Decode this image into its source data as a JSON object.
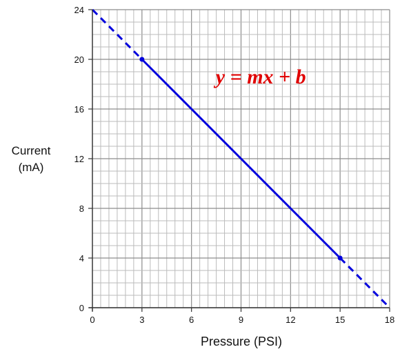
{
  "chart_data": {
    "type": "line",
    "x": [
      0,
      3,
      15,
      18
    ],
    "series": [
      {
        "values": [
          24,
          20,
          4,
          0
        ],
        "color": "#0000dd",
        "solid_range": [
          3,
          15
        ],
        "dashed_segments": [
          [
            0,
            3
          ],
          [
            15,
            18
          ]
        ],
        "markers_x": [
          3,
          15
        ]
      }
    ],
    "xlabel": "Pressure (PSI)",
    "ylabel_lines": [
      "Current",
      "(mA)"
    ],
    "xlim": [
      0,
      18
    ],
    "ylim": [
      0,
      24
    ],
    "x_ticks": [
      0,
      3,
      6,
      9,
      12,
      15,
      18
    ],
    "y_ticks": [
      0,
      4,
      8,
      12,
      16,
      20,
      24
    ],
    "x_minor_step": 0.5,
    "y_minor_step": 1,
    "grid": true,
    "annotation": {
      "text": "y = mx + b",
      "x": 10.2,
      "y": 18.6,
      "color": "#e00000"
    },
    "colors": {
      "grid_minor": "#bbbbbb",
      "grid_major": "#8c8c8c",
      "axis": "#333333"
    }
  }
}
